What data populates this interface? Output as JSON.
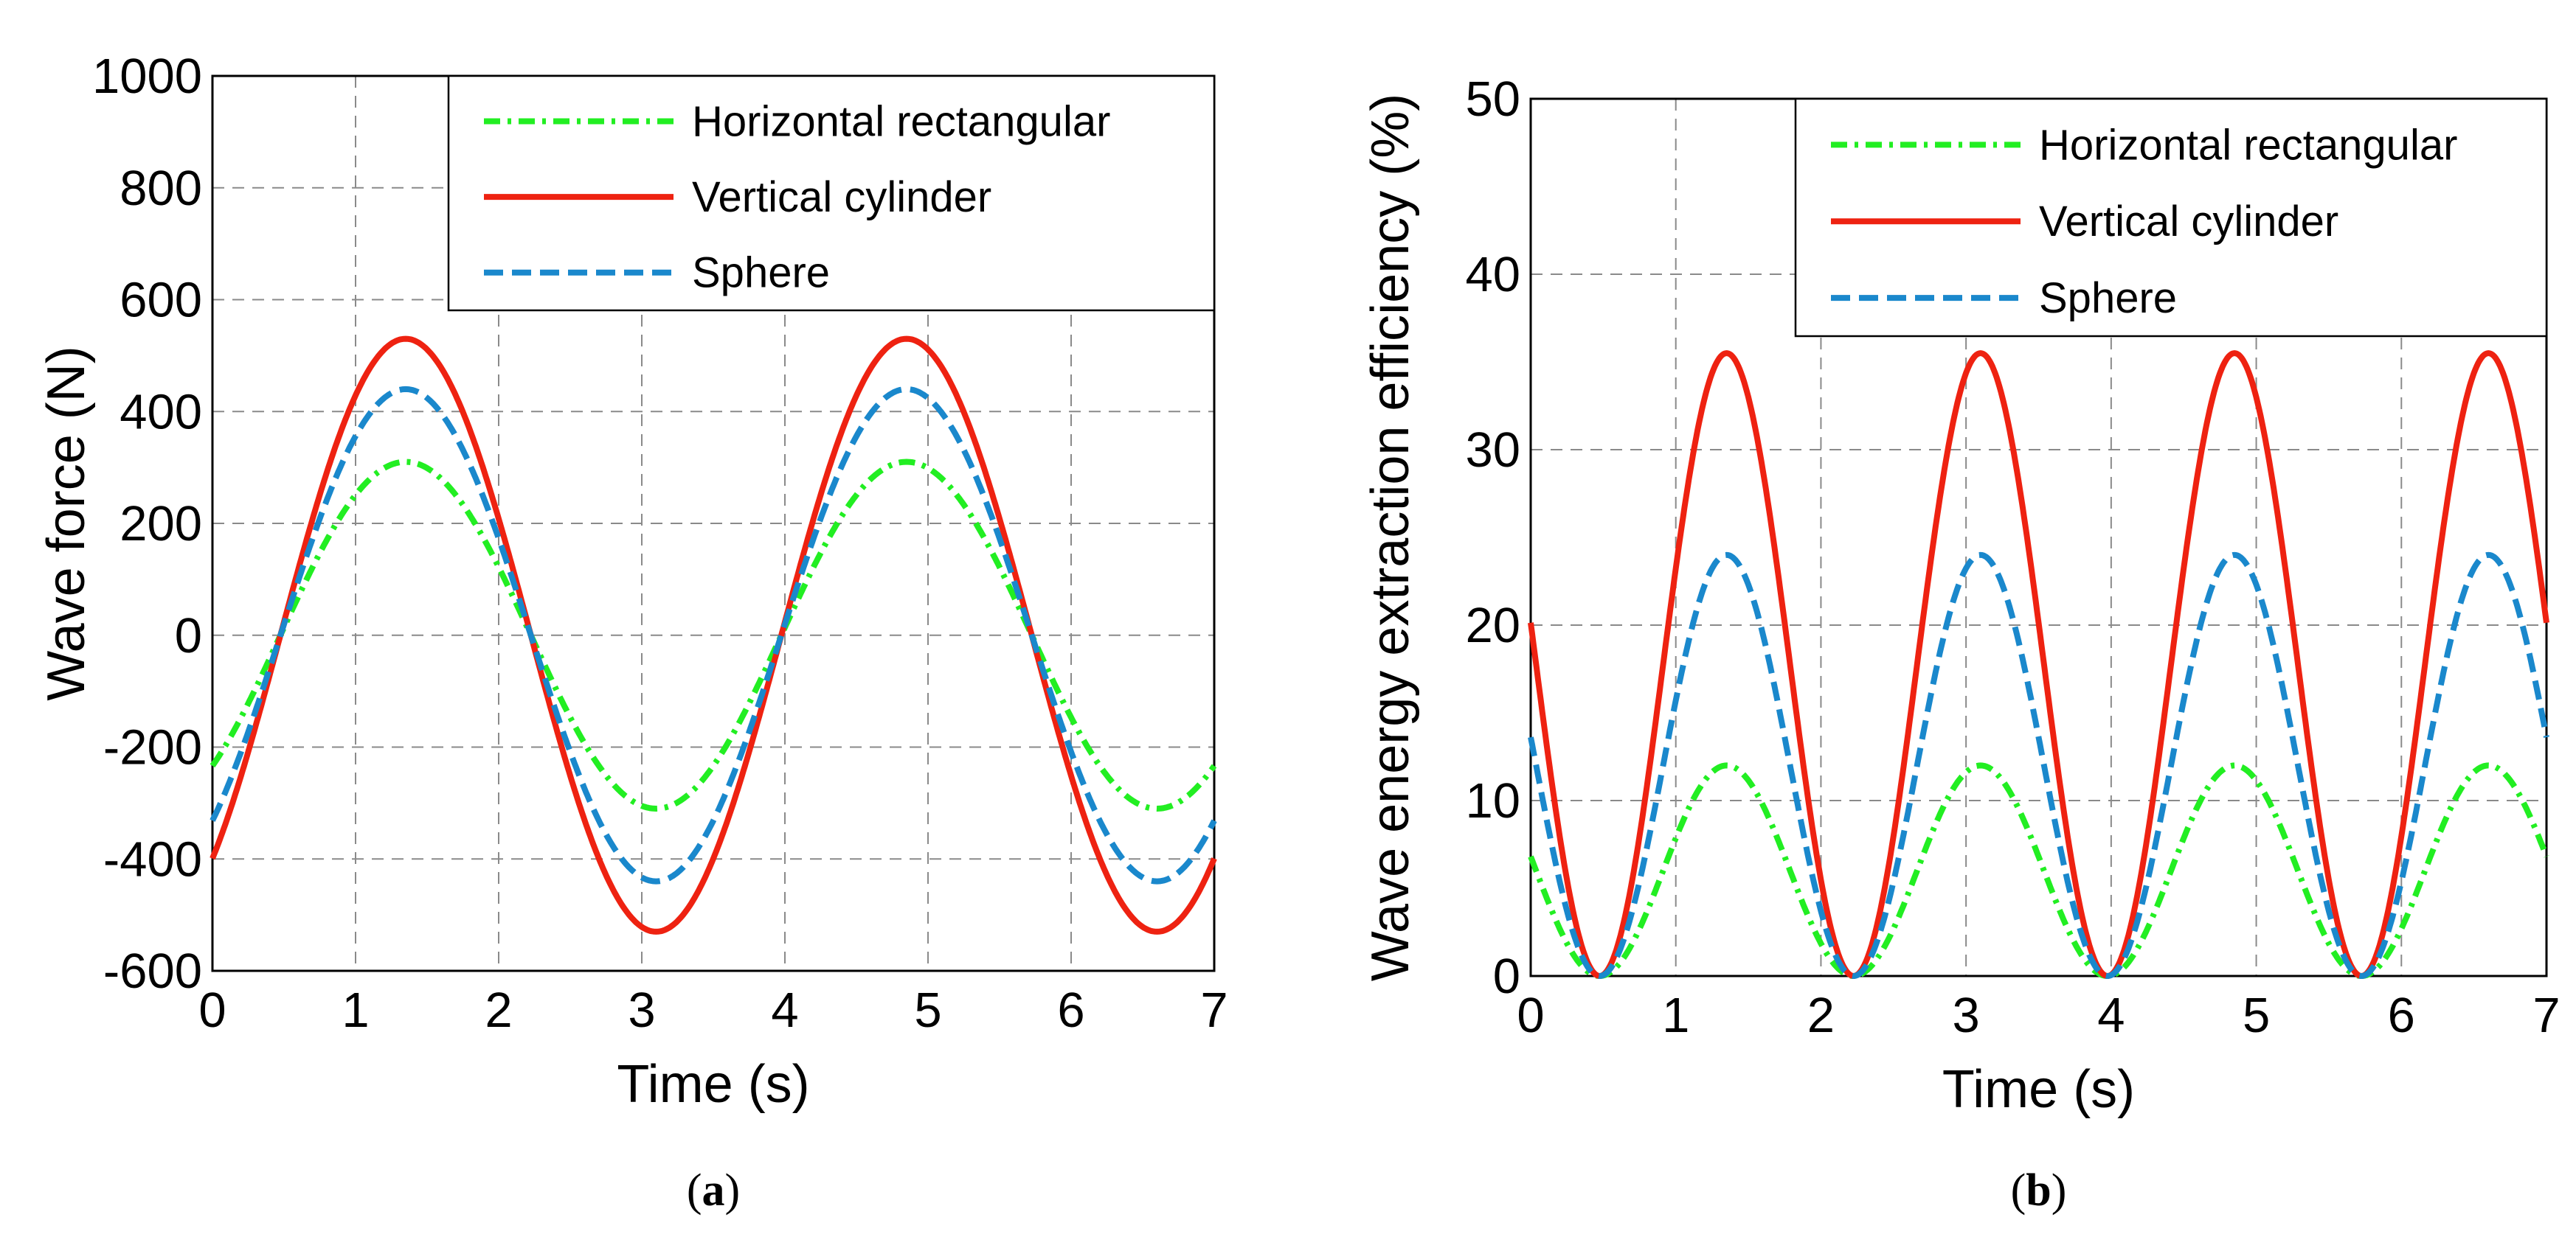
{
  "chart_data": [
    {
      "id": "a",
      "type": "line",
      "caption_letter": "a",
      "xlabel": "Time  (s)",
      "ylabel": "Wave force  (N)",
      "xlim": [
        0,
        7
      ],
      "ylim": [
        -600,
        1000
      ],
      "xticks": [
        0,
        1,
        2,
        3,
        4,
        5,
        6,
        7
      ],
      "yticks": [
        -600,
        -400,
        -200,
        0,
        200,
        400,
        600,
        800,
        1000
      ],
      "grid": true,
      "legend_position": "top-right",
      "series": [
        {
          "name": "Horizontal rectangular",
          "color": "#22ee22",
          "dash": "dashdot",
          "kind": "sine",
          "amplitude": 310,
          "period": 3.5,
          "peak_time": 1.35
        },
        {
          "name": "Vertical cylinder",
          "color": "#ee2211",
          "dash": "solid",
          "kind": "sine",
          "amplitude": 530,
          "period": 3.5,
          "peak_time": 1.35
        },
        {
          "name": "Sphere",
          "color": "#1a88cc",
          "dash": "dashed",
          "kind": "sine",
          "amplitude": 440,
          "period": 3.5,
          "peak_time": 1.35
        }
      ]
    },
    {
      "id": "b",
      "type": "line",
      "caption_letter": "b",
      "xlabel": "Time  (s)",
      "ylabel": "Wave energy extraction efficiency  (%)",
      "xlim": [
        0,
        7
      ],
      "ylim": [
        0,
        50
      ],
      "xticks": [
        0,
        1,
        2,
        3,
        4,
        5,
        6,
        7
      ],
      "yticks": [
        0,
        10,
        20,
        30,
        40,
        50
      ],
      "grid": true,
      "legend_position": "top-right",
      "series": [
        {
          "name": "Horizontal rectangular",
          "color": "#22ee22",
          "dash": "dashdot",
          "kind": "sine2",
          "amplitude": 12,
          "period": 3.5,
          "peak_time": 1.35
        },
        {
          "name": "Vertical cylinder",
          "color": "#ee2211",
          "dash": "solid",
          "kind": "sine2",
          "amplitude": 35.5,
          "period": 3.5,
          "peak_time": 1.35
        },
        {
          "name": "Sphere",
          "color": "#1a88cc",
          "dash": "dashed",
          "kind": "sine2",
          "amplitude": 24,
          "period": 3.5,
          "peak_time": 1.35
        }
      ]
    }
  ]
}
